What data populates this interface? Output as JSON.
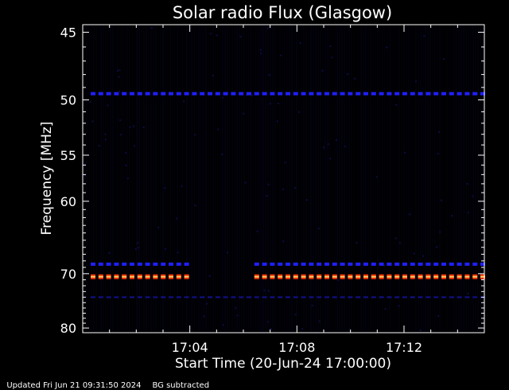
{
  "chart_data": {
    "type": "heatmap",
    "title": "Solar radio Flux (Glasgow)",
    "xlabel": "Start Time (20-Jun-24 17:00:00)",
    "ylabel": "Frequency [MHz]",
    "x_range_minutes": [
      0.0,
      15.0
    ],
    "x_ticks": [
      {
        "label": "17:04",
        "minutes": 4
      },
      {
        "label": "17:08",
        "minutes": 8
      },
      {
        "label": "17:12",
        "minutes": 12
      }
    ],
    "y_ticks": [
      {
        "label": "45",
        "mhz": 45
      },
      {
        "label": "50",
        "mhz": 50
      },
      {
        "label": "55",
        "mhz": 55
      },
      {
        "label": "60",
        "mhz": 60
      },
      {
        "label": "70",
        "mhz": 70
      },
      {
        "label": "80",
        "mhz": 80
      }
    ],
    "y_scale": "reciprocal (frequency decreasing downward, compressed at low frequencies)",
    "colors": {
      "background": "#000000",
      "weak": "#0a0a3c",
      "band": "#2020ff",
      "hot_core": "#ffcc66",
      "hot_edge": "#ff3300"
    },
    "bands": [
      {
        "name": "49.5 MHz",
        "mhz": 49.5,
        "intensity": "medium",
        "gaps_minutes": []
      },
      {
        "name": "68.5 MHz",
        "mhz": 68.5,
        "intensity": "medium",
        "gaps_minutes": [
          [
            3.9,
            6.4
          ]
        ]
      },
      {
        "name": "70.5 MHz",
        "mhz": 70.5,
        "intensity": "high",
        "gaps_minutes": [
          [
            3.9,
            6.4
          ]
        ]
      },
      {
        "name": "74.0 MHz",
        "mhz": 74.0,
        "intensity": "low",
        "gaps_minutes": []
      }
    ]
  },
  "footer": {
    "updated": "Updated Fri Jun 21 09:31:50 2024",
    "note": "BG subtracted"
  }
}
